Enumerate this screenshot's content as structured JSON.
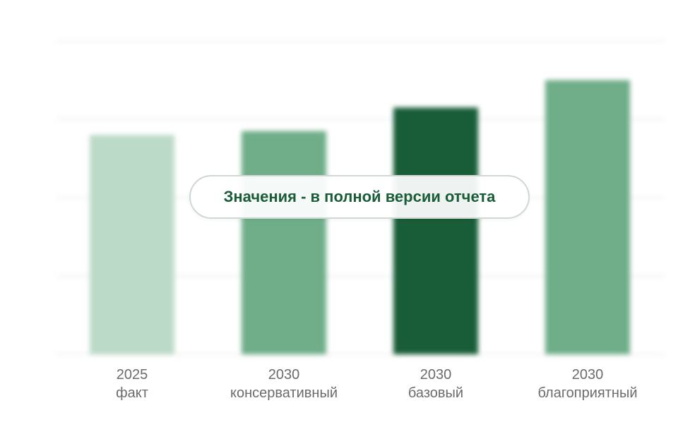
{
  "overlay": {
    "text": "Значения - в полной версии отчета"
  },
  "chart_data": {
    "type": "bar",
    "categories": [
      [
        "2025",
        "факт"
      ],
      [
        "2030",
        "консервативный"
      ],
      [
        "2030",
        "базовый"
      ],
      [
        "2030",
        "благоприятный"
      ]
    ],
    "values": [
      56,
      57,
      63,
      70
    ],
    "ylim": [
      0,
      80
    ],
    "grid": true,
    "colors": [
      "#bcdac8",
      "#6fae89",
      "#185d38",
      "#6fae89"
    ]
  }
}
